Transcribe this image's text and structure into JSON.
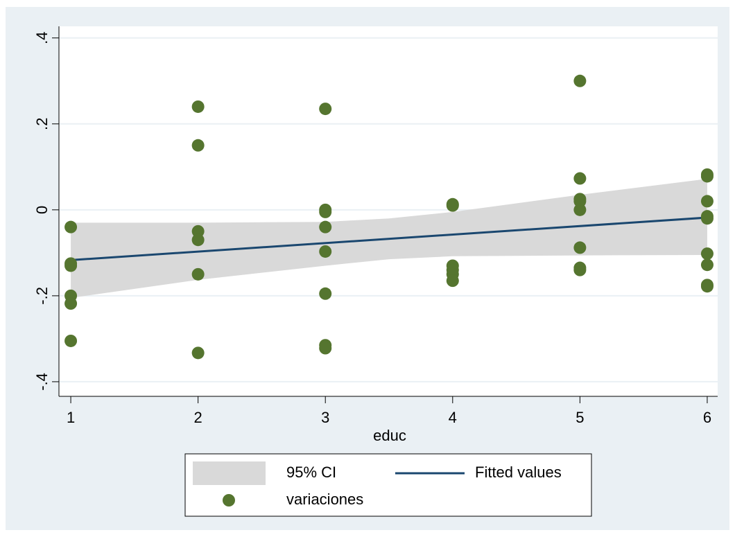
{
  "chart_data": {
    "type": "scatter",
    "x_label": "educ",
    "xlim": [
      0.907,
      6.082
    ],
    "xticks": [
      1,
      2,
      3,
      4,
      5,
      6
    ],
    "ylim": [
      -0.434,
      0.427
    ],
    "yticks": [
      {
        "value": -0.4,
        "label": "-.4"
      },
      {
        "value": -0.2,
        "label": "-.2"
      },
      {
        "value": 0,
        "label": "0"
      },
      {
        "value": 0.2,
        "label": ".2"
      },
      {
        "value": 0.4,
        "label": ".4"
      }
    ],
    "grid": true,
    "series": [
      {
        "name": "95% CI",
        "type": "area",
        "color": "#d9d9d9",
        "x": [
          1,
          2,
          3,
          3.5,
          4,
          5,
          6
        ],
        "upper": [
          -0.03,
          -0.03,
          -0.028,
          -0.02,
          -0.005,
          0.035,
          0.072
        ],
        "lower": [
          -0.205,
          -0.163,
          -0.13,
          -0.115,
          -0.108,
          -0.106,
          -0.105
        ]
      },
      {
        "name": "Fitted values",
        "type": "line",
        "color": "#1a476f",
        "x": [
          1,
          6
        ],
        "values": [
          -0.117,
          -0.018
        ]
      },
      {
        "name": "variaciones",
        "type": "scatter",
        "color": "#55752f",
        "x": [
          1,
          1,
          1,
          1,
          1,
          1,
          2,
          2,
          2,
          2,
          2,
          2,
          3,
          3,
          3,
          3,
          3,
          3,
          3,
          3,
          4,
          4,
          4,
          4,
          4,
          4,
          5,
          5,
          5,
          5,
          5,
          5,
          5,
          5,
          6,
          6,
          6,
          6,
          6,
          6,
          6,
          6,
          6
        ],
        "values": [
          -0.04,
          -0.125,
          -0.13,
          -0.2,
          -0.218,
          -0.305,
          0.24,
          0.15,
          -0.05,
          -0.07,
          -0.15,
          -0.333,
          0.235,
          0.0,
          -0.005,
          -0.04,
          -0.097,
          -0.195,
          -0.315,
          -0.322,
          0.013,
          0.01,
          -0.13,
          -0.14,
          -0.15,
          -0.165,
          0.3,
          0.073,
          0.025,
          0.02,
          0.0,
          -0.088,
          -0.14,
          -0.135,
          0.082,
          0.078,
          0.02,
          -0.015,
          -0.02,
          -0.102,
          -0.128,
          -0.175,
          -0.178
        ]
      }
    ]
  }
}
